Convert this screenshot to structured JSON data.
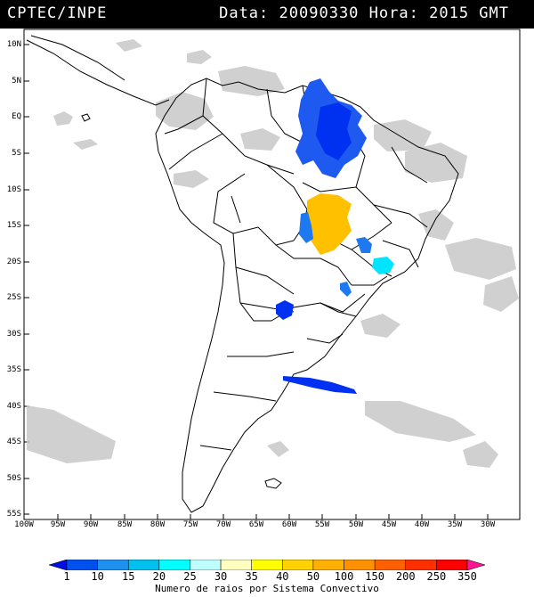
{
  "header": {
    "source": "CPTEC/INPE",
    "date_label": "Data:",
    "date": "20090330",
    "time_label": "Hora:",
    "time": "2015 GMT"
  },
  "map": {
    "lat_labels": [
      "10N",
      "5N",
      "EQ",
      "5S",
      "10S",
      "15S",
      "20S",
      "25S",
      "30S",
      "35S",
      "40S",
      "45S",
      "50S",
      "55S"
    ],
    "lon_labels": [
      "100W",
      "95W",
      "90W",
      "85W",
      "80W",
      "75W",
      "70W",
      "65W",
      "60W",
      "55W",
      "50W",
      "45W",
      "40W",
      "35W",
      "30W"
    ]
  },
  "colorbar": {
    "title": "Numero de raios por Sistema Convectivo",
    "ticks": [
      "1",
      "10",
      "15",
      "20",
      "25",
      "30",
      "35",
      "40",
      "50",
      "100",
      "150",
      "200",
      "250",
      "350"
    ],
    "colors": [
      "#0010e0",
      "#0050f0",
      "#1e90f0",
      "#00c0f0",
      "#00ffff",
      "#c0ffff",
      "#ffffc0",
      "#ffff00",
      "#ffd200",
      "#ffb000",
      "#ff9000",
      "#ff6000",
      "#ff3000",
      "#ff0000",
      "#ff1493"
    ]
  },
  "colors": {
    "lightning_blue": "#0030f0",
    "lightning_mid": "#1e78f0",
    "lightning_cyan": "#00e5ff",
    "lightning_gold": "#ffc000",
    "cloud_gray": "#c8c8c8",
    "border_black": "#000000"
  }
}
